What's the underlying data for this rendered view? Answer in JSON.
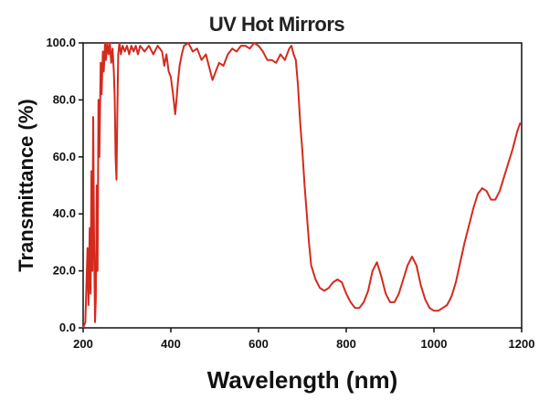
{
  "chart_data": {
    "type": "line",
    "title": "UV Hot Mirrors",
    "xlabel": "Wavelength (nm)",
    "ylabel": "Transmittance (%)",
    "xlim": [
      200,
      1200
    ],
    "ylim": [
      0,
      100
    ],
    "x_ticks": [
      200,
      400,
      600,
      800,
      1000,
      1200
    ],
    "y_ticks": [
      0,
      20,
      40,
      60,
      80,
      100
    ],
    "x_tick_labels": [
      "200",
      "400",
      "600",
      "800",
      "1000",
      "1200"
    ],
    "y_tick_labels": [
      "0.0",
      "20.0",
      "40.0",
      "60.0",
      "80.0",
      "100.0"
    ],
    "grid": false,
    "color": "#d42a1e",
    "series": [
      {
        "points": [
          [
            200,
            0
          ],
          [
            205,
            2
          ],
          [
            210,
            28
          ],
          [
            212,
            8
          ],
          [
            215,
            35
          ],
          [
            217,
            12
          ],
          [
            219,
            55
          ],
          [
            221,
            20
          ],
          [
            223,
            74
          ],
          [
            225,
            30
          ],
          [
            227,
            2
          ],
          [
            229,
            10
          ],
          [
            231,
            50
          ],
          [
            233,
            20
          ],
          [
            235,
            80
          ],
          [
            237,
            60
          ],
          [
            240,
            93
          ],
          [
            242,
            82
          ],
          [
            245,
            97
          ],
          [
            247,
            90
          ],
          [
            250,
            100
          ],
          [
            252,
            94
          ],
          [
            255,
            100
          ],
          [
            258,
            96
          ],
          [
            261,
            100
          ],
          [
            264,
            93
          ],
          [
            267,
            98
          ],
          [
            270,
            90
          ],
          [
            272,
            80
          ],
          [
            274,
            60
          ],
          [
            276,
            52
          ],
          [
            278,
            75
          ],
          [
            280,
            96
          ],
          [
            283,
            100
          ],
          [
            286,
            96
          ],
          [
            290,
            99
          ],
          [
            295,
            97
          ],
          [
            300,
            99
          ],
          [
            305,
            96
          ],
          [
            310,
            99
          ],
          [
            315,
            97
          ],
          [
            320,
            99
          ],
          [
            325,
            96
          ],
          [
            330,
            99
          ],
          [
            340,
            97
          ],
          [
            350,
            99
          ],
          [
            360,
            96
          ],
          [
            370,
            99
          ],
          [
            380,
            97
          ],
          [
            385,
            92
          ],
          [
            390,
            96
          ],
          [
            395,
            90
          ],
          [
            400,
            88
          ],
          [
            405,
            82
          ],
          [
            408,
            78
          ],
          [
            410,
            75
          ],
          [
            413,
            80
          ],
          [
            416,
            86
          ],
          [
            420,
            92
          ],
          [
            425,
            96
          ],
          [
            430,
            99
          ],
          [
            440,
            100
          ],
          [
            450,
            97
          ],
          [
            460,
            98
          ],
          [
            470,
            94
          ],
          [
            480,
            96
          ],
          [
            490,
            90
          ],
          [
            495,
            87
          ],
          [
            500,
            89
          ],
          [
            510,
            93
          ],
          [
            520,
            92
          ],
          [
            530,
            96
          ],
          [
            540,
            98
          ],
          [
            550,
            97
          ],
          [
            560,
            99
          ],
          [
            570,
            99
          ],
          [
            580,
            98
          ],
          [
            590,
            100
          ],
          [
            600,
            99
          ],
          [
            610,
            97
          ],
          [
            620,
            94
          ],
          [
            630,
            94
          ],
          [
            640,
            93
          ],
          [
            650,
            96
          ],
          [
            660,
            94
          ],
          [
            670,
            98
          ],
          [
            675,
            99
          ],
          [
            680,
            96
          ],
          [
            685,
            94
          ],
          [
            690,
            85
          ],
          [
            695,
            72
          ],
          [
            700,
            62
          ],
          [
            705,
            50
          ],
          [
            710,
            40
          ],
          [
            715,
            30
          ],
          [
            720,
            22
          ],
          [
            730,
            17
          ],
          [
            740,
            14
          ],
          [
            750,
            13
          ],
          [
            760,
            14
          ],
          [
            770,
            16
          ],
          [
            780,
            17
          ],
          [
            790,
            16
          ],
          [
            800,
            12
          ],
          [
            810,
            9
          ],
          [
            820,
            7
          ],
          [
            830,
            7
          ],
          [
            840,
            9
          ],
          [
            850,
            13
          ],
          [
            860,
            20
          ],
          [
            870,
            23
          ],
          [
            880,
            18
          ],
          [
            890,
            12
          ],
          [
            900,
            9
          ],
          [
            910,
            9
          ],
          [
            920,
            12
          ],
          [
            930,
            17
          ],
          [
            940,
            22
          ],
          [
            950,
            25
          ],
          [
            960,
            22
          ],
          [
            970,
            15
          ],
          [
            980,
            10
          ],
          [
            990,
            7
          ],
          [
            1000,
            6
          ],
          [
            1010,
            6
          ],
          [
            1020,
            7
          ],
          [
            1030,
            8
          ],
          [
            1040,
            11
          ],
          [
            1050,
            16
          ],
          [
            1060,
            23
          ],
          [
            1070,
            30
          ],
          [
            1080,
            36
          ],
          [
            1090,
            42
          ],
          [
            1100,
            47
          ],
          [
            1110,
            49
          ],
          [
            1120,
            48
          ],
          [
            1130,
            45
          ],
          [
            1140,
            45
          ],
          [
            1150,
            48
          ],
          [
            1160,
            53
          ],
          [
            1170,
            58
          ],
          [
            1180,
            63
          ],
          [
            1190,
            69
          ],
          [
            1197,
            72
          ]
        ]
      }
    ]
  }
}
